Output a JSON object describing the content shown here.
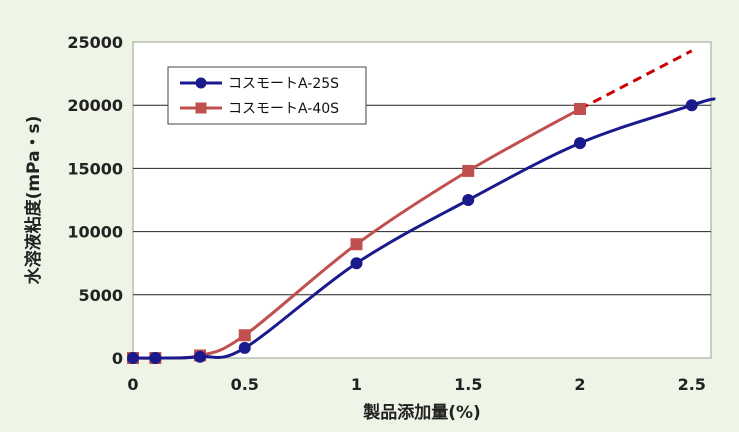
{
  "chart_data": {
    "type": "line",
    "title": "",
    "xlabel": "製品添加量(%)",
    "ylabel": "水溶液粘度(mPa・s)",
    "xlim": [
      0,
      2.6
    ],
    "ylim": [
      0,
      25000
    ],
    "x_ticks": [
      "0",
      "0.5",
      "1",
      "1.5",
      "2",
      "2.5"
    ],
    "y_ticks": [
      "0",
      "5000",
      "10000",
      "15000",
      "20000",
      "25000"
    ],
    "grid": "horizontal",
    "legend_position": "top-left",
    "series": [
      {
        "name": "コスモートA-25S",
        "color": "#1a1a8c",
        "marker": "circle",
        "points": [
          {
            "x": 0,
            "y": 0
          },
          {
            "x": 0.1,
            "y": 0
          },
          {
            "x": 0.3,
            "y": 100
          },
          {
            "x": 0.5,
            "y": 800
          },
          {
            "x": 1,
            "y": 7500
          },
          {
            "x": 1.5,
            "y": 12500
          },
          {
            "x": 2,
            "y": 17000
          },
          {
            "x": 2.5,
            "y": 20000
          }
        ],
        "curve_to": {
          "x": 2.6,
          "y": 20500
        }
      },
      {
        "name": "コスモートA-40S",
        "color": "#c0504d",
        "marker": "square",
        "points": [
          {
            "x": 0,
            "y": 0
          },
          {
            "x": 0.1,
            "y": 0
          },
          {
            "x": 0.3,
            "y": 200
          },
          {
            "x": 0.5,
            "y": 1800
          },
          {
            "x": 1,
            "y": 9000
          },
          {
            "x": 1.5,
            "y": 14800
          },
          {
            "x": 2,
            "y": 19700
          }
        ],
        "extrapolation": {
          "style": "dashed",
          "color": "#cc0000",
          "points": [
            {
              "x": 2,
              "y": 19700
            },
            {
              "x": 2.5,
              "y": 24300
            }
          ]
        }
      }
    ]
  }
}
